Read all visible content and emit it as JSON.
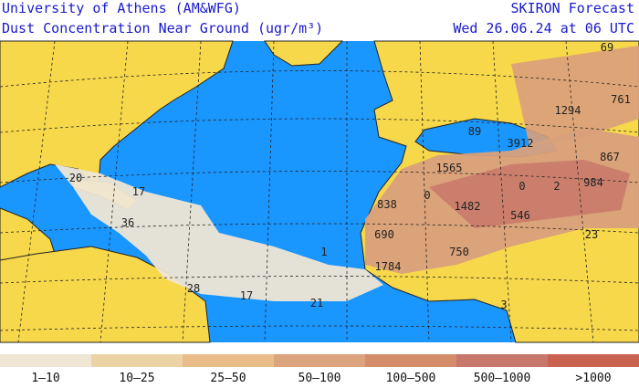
{
  "header": {
    "left": [
      "University of Athens (AM&WFG)",
      "Dust Concentration Near Ground (ugr/m³)"
    ],
    "right": [
      "SKIRON Forecast",
      "Wed 26.06.24 at 06 UTC"
    ]
  },
  "map": {
    "labels": [
      "20",
      "17",
      "36",
      "28",
      "17",
      "21",
      "1",
      "838",
      "0",
      "1565",
      "1482",
      "0",
      "546",
      "2",
      "984",
      "867",
      "3912",
      "1294",
      "761",
      "69",
      "690",
      "750",
      "1784",
      "23",
      "89",
      "3"
    ]
  },
  "legend": [
    {
      "label": "1–10",
      "color": "#efe6d4"
    },
    {
      "label": "10–25",
      "color": "#ecd3a6"
    },
    {
      "label": "25–50",
      "color": "#e9bd8a"
    },
    {
      "label": "50–100",
      "color": "#dca47e"
    },
    {
      "label": "100–500",
      "color": "#d48c6b"
    },
    {
      "label": "500–1000",
      "color": "#c8786a"
    },
    {
      "label": ">1000",
      "color": "#c9624f"
    }
  ]
}
